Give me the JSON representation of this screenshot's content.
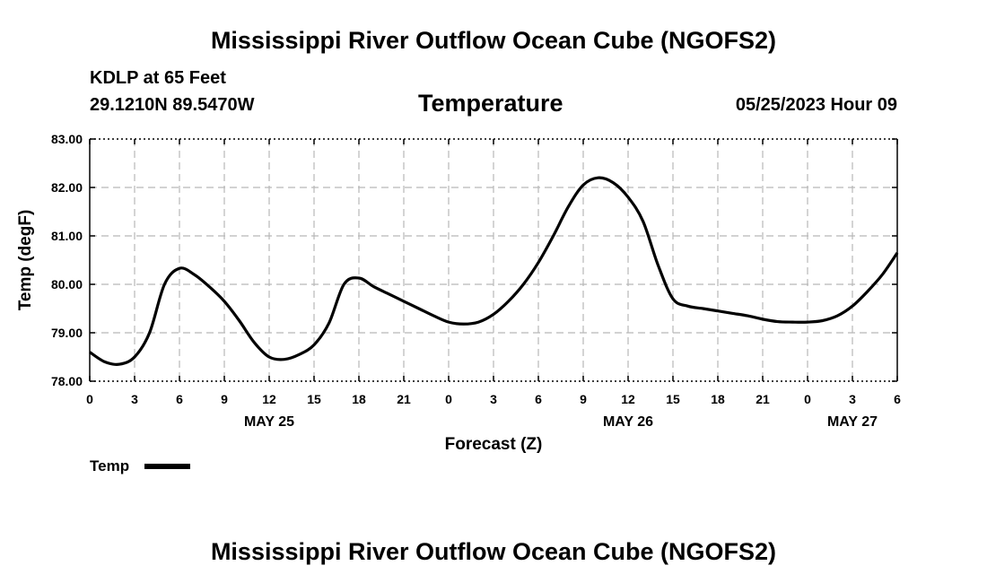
{
  "page": {
    "title_top": "Mississippi River Outflow Ocean Cube (NGOFS2)",
    "title_bottom": "Mississippi River Outflow Ocean Cube (NGOFS2)",
    "station": "KDLP at 65 Feet",
    "coords": "29.1210N  89.5470W",
    "chart_title": "Temperature",
    "timestamp": "05/25/2023 Hour 09"
  },
  "colors": {
    "line": "#000000",
    "grid": "#b8b8b8"
  },
  "chart_data": {
    "type": "line",
    "title": "Temperature",
    "xlabel": "Forecast (Z)",
    "ylabel": "Temp (degF)",
    "ylim": [
      78.0,
      83.0
    ],
    "xlim_hours": [
      0,
      54
    ],
    "y_ticks": [
      "78.00",
      "79.00",
      "80.00",
      "81.00",
      "82.00",
      "83.00"
    ],
    "x_ticks": [
      "0",
      "3",
      "6",
      "9",
      "12",
      "15",
      "18",
      "21",
      "0",
      "3",
      "6",
      "9",
      "12",
      "15",
      "18",
      "21",
      "0",
      "3",
      "6"
    ],
    "date_labels": [
      {
        "hour": 12,
        "label": "MAY 25"
      },
      {
        "hour": 36,
        "label": "MAY 26"
      },
      {
        "hour": 51,
        "label": "MAY 27"
      }
    ],
    "grid": true,
    "legend": {
      "position": "bottom-left",
      "entries": [
        "Temp"
      ]
    },
    "series": [
      {
        "name": "Temp",
        "x": [
          0,
          1,
          2,
          3,
          4,
          5,
          6,
          7,
          8,
          9,
          10,
          11,
          12,
          13,
          14,
          15,
          16,
          17,
          18,
          19,
          20,
          21,
          22,
          23,
          24,
          25,
          26,
          27,
          28,
          29,
          30,
          31,
          32,
          33,
          34,
          35,
          36,
          37,
          38,
          39,
          40,
          41,
          42,
          43,
          44,
          45,
          46,
          47,
          48,
          49,
          50,
          51,
          52,
          53,
          54
        ],
        "values": [
          78.6,
          78.4,
          78.35,
          78.5,
          79.0,
          80.0,
          80.33,
          80.2,
          79.95,
          79.65,
          79.25,
          78.8,
          78.5,
          78.45,
          78.55,
          78.75,
          79.2,
          80.0,
          80.13,
          79.95,
          79.8,
          79.65,
          79.5,
          79.35,
          79.22,
          79.18,
          79.22,
          79.38,
          79.65,
          80.0,
          80.45,
          81.0,
          81.6,
          82.05,
          82.2,
          82.1,
          81.8,
          81.3,
          80.4,
          79.7,
          79.55,
          79.5,
          79.45,
          79.4,
          79.35,
          79.28,
          79.23,
          79.22,
          79.22,
          79.25,
          79.35,
          79.55,
          79.85,
          80.2,
          80.65
        ]
      }
    ]
  }
}
